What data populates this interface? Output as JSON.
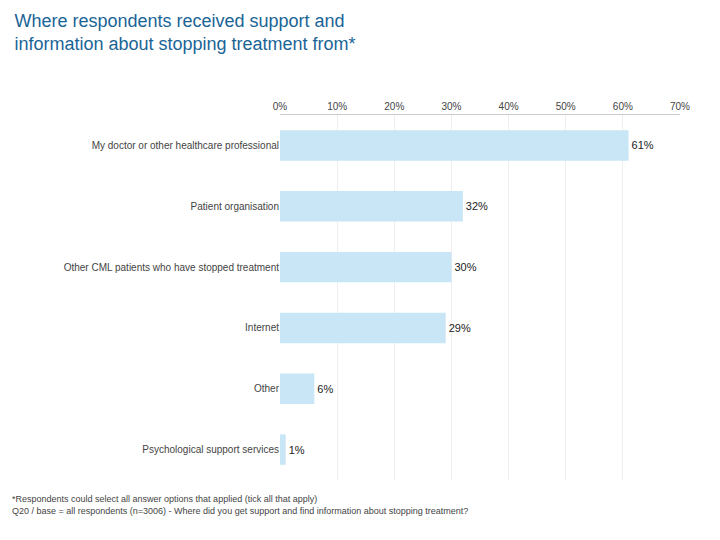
{
  "chart_data": {
    "type": "bar",
    "title": "Where respondents received support and\ninformation about stopping treatment from*",
    "orientation": "horizontal",
    "categories": [
      "My doctor or other healthcare professional",
      "Patient organisation",
      "Other CML patients who have stopped treatment",
      "Internet",
      "Other",
      "Psychological support services"
    ],
    "values": [
      61,
      32,
      30,
      29,
      6,
      1
    ],
    "value_labels": [
      "61%",
      "32%",
      "30%",
      "29%",
      "6%",
      "1%"
    ],
    "data_labels": true,
    "color": "#c8e6f5",
    "xlim": [
      0,
      70
    ],
    "xticks": [
      {
        "value": 0,
        "label": "0%"
      },
      {
        "value": 10,
        "label": "10%"
      },
      {
        "value": 20,
        "label": "20%"
      },
      {
        "value": 30,
        "label": "30%"
      },
      {
        "value": 40,
        "label": "40%"
      },
      {
        "value": 50,
        "label": "50%"
      },
      {
        "value": 60,
        "label": "60%"
      },
      {
        "value": 70,
        "label": "70%"
      }
    ],
    "grid": true,
    "annotations": [
      "*Respondents could select all answer options that applied (tick all that apply)",
      "Q20 / base = all respondents (n=3006) - Where did you get support and find information about stopping treatment?"
    ]
  }
}
